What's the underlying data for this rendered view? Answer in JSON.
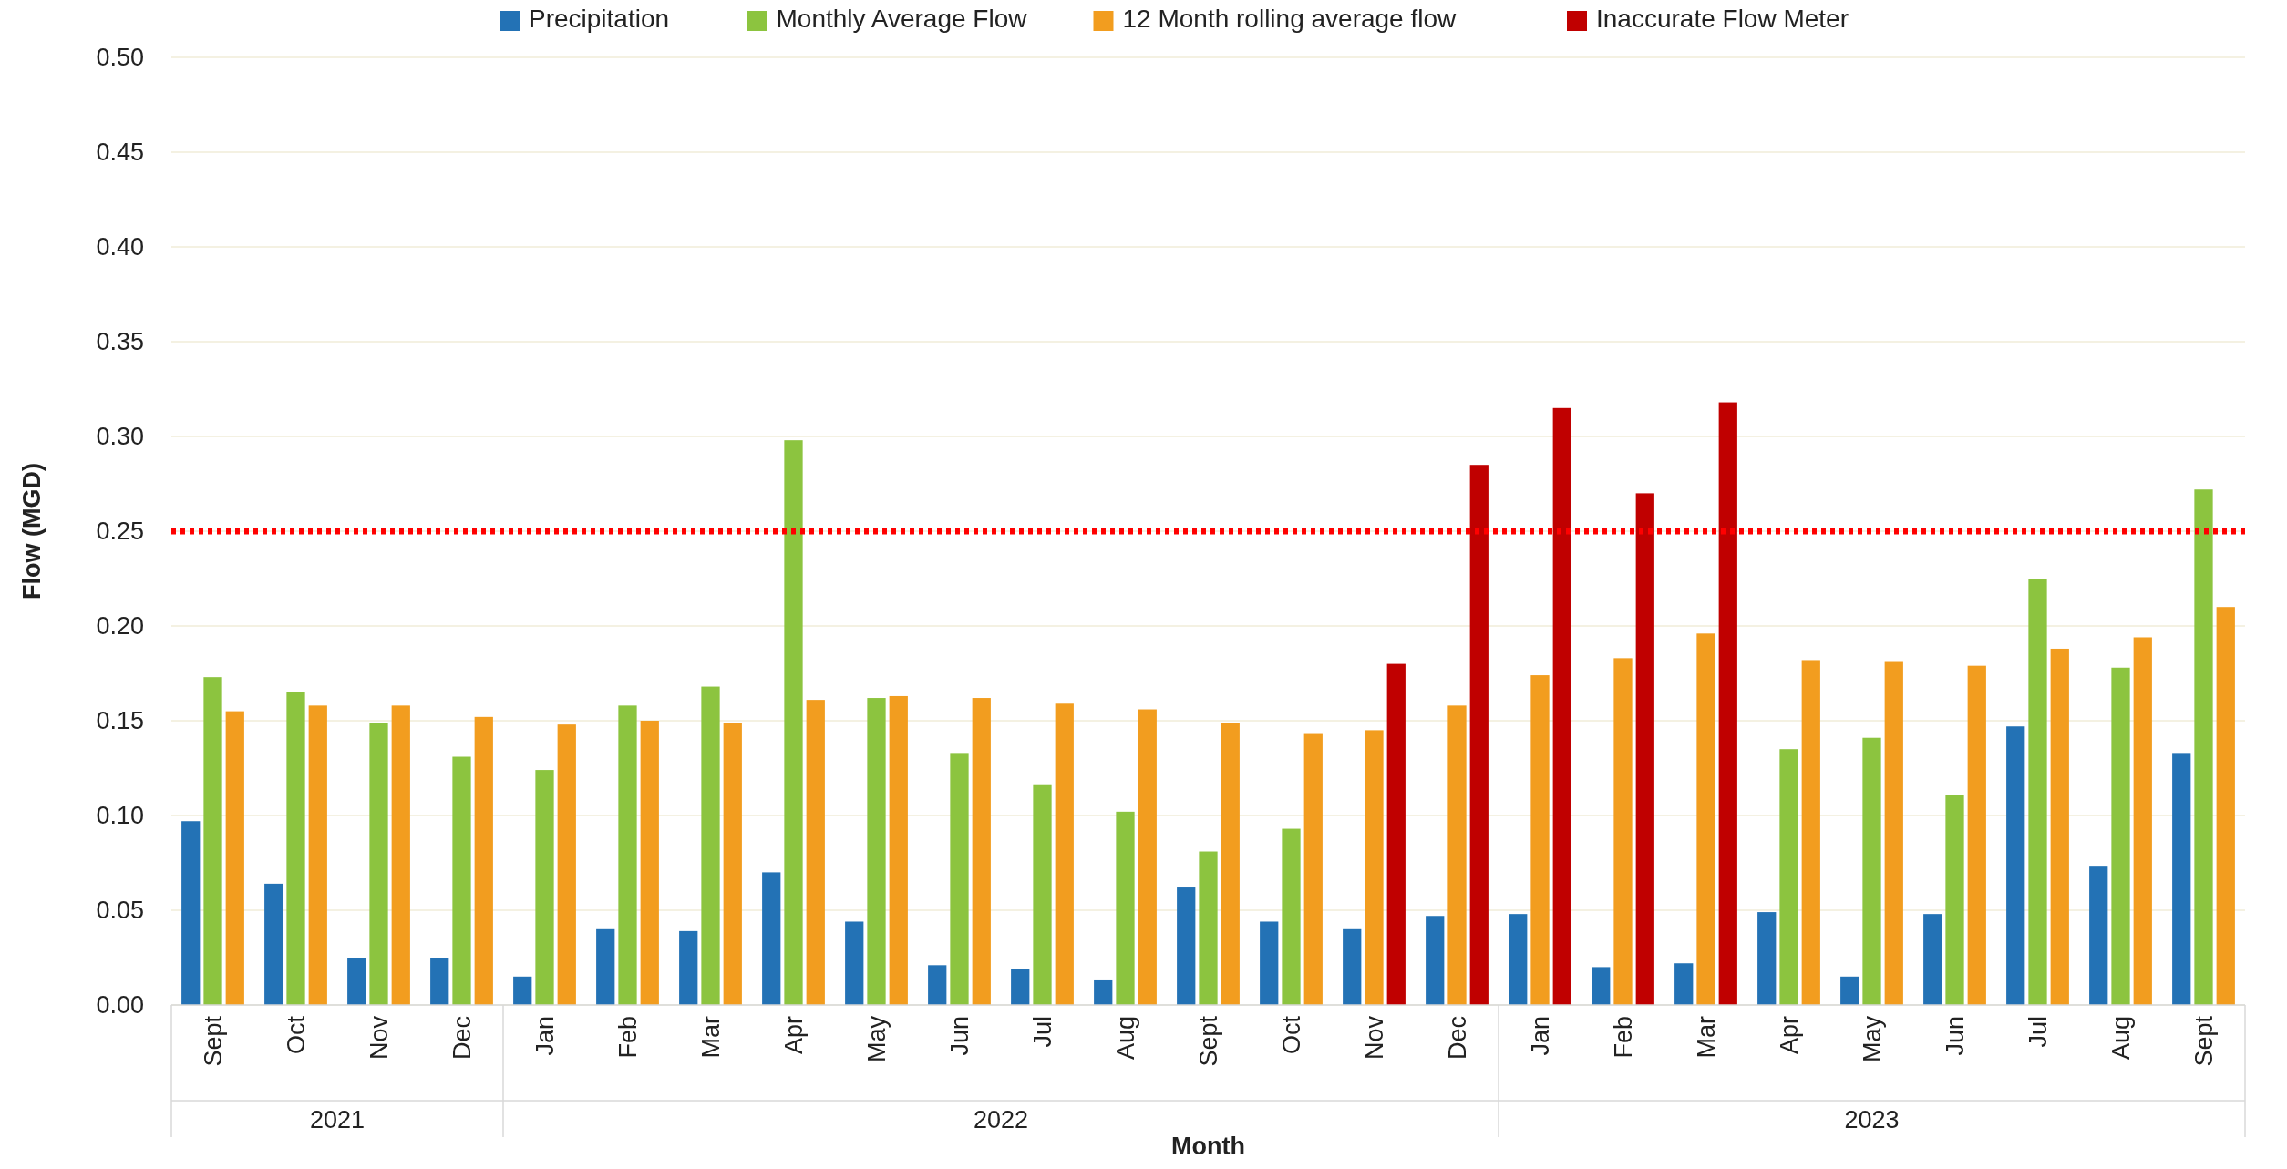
{
  "chart_data": {
    "type": "bar",
    "xlabel": "Month",
    "ylabel": "Flow (MGD)",
    "categories": [
      "Sept",
      "Oct",
      "Nov",
      "Dec",
      "Jan",
      "Feb",
      "Mar",
      "Apr",
      "May",
      "Jun",
      "Jul",
      "Aug",
      "Sept",
      "Oct",
      "Nov",
      "Dec",
      "Jan",
      "Feb",
      "Mar",
      "Apr",
      "May",
      "Jun",
      "Jul",
      "Aug",
      "Sept"
    ],
    "series": [
      {
        "name": "Precipitation",
        "color": "#2372b5",
        "values": [
          0.097,
          0.064,
          0.025,
          0.025,
          0.015,
          0.04,
          0.039,
          0.07,
          0.044,
          0.021,
          0.019,
          0.013,
          0.062,
          0.044,
          0.04,
          0.047,
          0.048,
          0.02,
          0.022,
          0.049,
          0.015,
          0.048,
          0.147,
          0.073,
          0.133
        ]
      },
      {
        "name": "Monthly Average Flow",
        "color": "#8cc43f",
        "values": [
          0.173,
          0.165,
          0.149,
          0.131,
          0.124,
          0.158,
          0.168,
          0.298,
          0.162,
          0.133,
          0.116,
          0.102,
          0.081,
          0.093,
          null,
          null,
          null,
          null,
          null,
          0.135,
          0.141,
          0.111,
          0.225,
          0.178,
          0.272
        ]
      },
      {
        "name": "12 Month rolling average flow",
        "color": "#f29d1f",
        "values": [
          0.155,
          0.158,
          0.158,
          0.152,
          0.148,
          0.15,
          0.149,
          0.161,
          0.163,
          0.162,
          0.159,
          0.156,
          0.149,
          0.143,
          0.145,
          0.158,
          0.174,
          0.183,
          0.196,
          0.182,
          0.181,
          0.179,
          0.188,
          0.194,
          0.21
        ]
      },
      {
        "name": "Inaccurate Flow Meter",
        "color": "#c00000",
        "values": [
          null,
          null,
          null,
          null,
          null,
          null,
          null,
          null,
          null,
          null,
          null,
          null,
          null,
          null,
          0.18,
          0.285,
          0.315,
          0.27,
          0.318,
          null,
          null,
          null,
          null,
          null,
          null
        ]
      }
    ],
    "annotations": [
      "2021",
      "2022",
      "2023"
    ],
    "ylim": [
      0,
      0.5
    ],
    "yticks": [
      {
        "value": 0,
        "label": "0.00"
      },
      {
        "value": 0.05,
        "label": "0.05"
      },
      {
        "value": 0.1,
        "label": "0.10"
      },
      {
        "value": 0.15,
        "label": "0.15"
      },
      {
        "value": 0.2,
        "label": "0.20"
      },
      {
        "value": 0.25,
        "label": "0.25"
      },
      {
        "value": 0.3,
        "label": "0.30"
      },
      {
        "value": 0.35,
        "label": "0.35"
      },
      {
        "value": 0.4,
        "label": "0.40"
      },
      {
        "value": 0.45,
        "label": "0.45"
      },
      {
        "value": 0.5,
        "label": "0.50"
      }
    ],
    "ref_lines": [
      {
        "axis": "y",
        "value": 0.25,
        "color": "#ff0000",
        "line_style": "dotted"
      }
    ],
    "grid": "y",
    "legend": "top"
  }
}
